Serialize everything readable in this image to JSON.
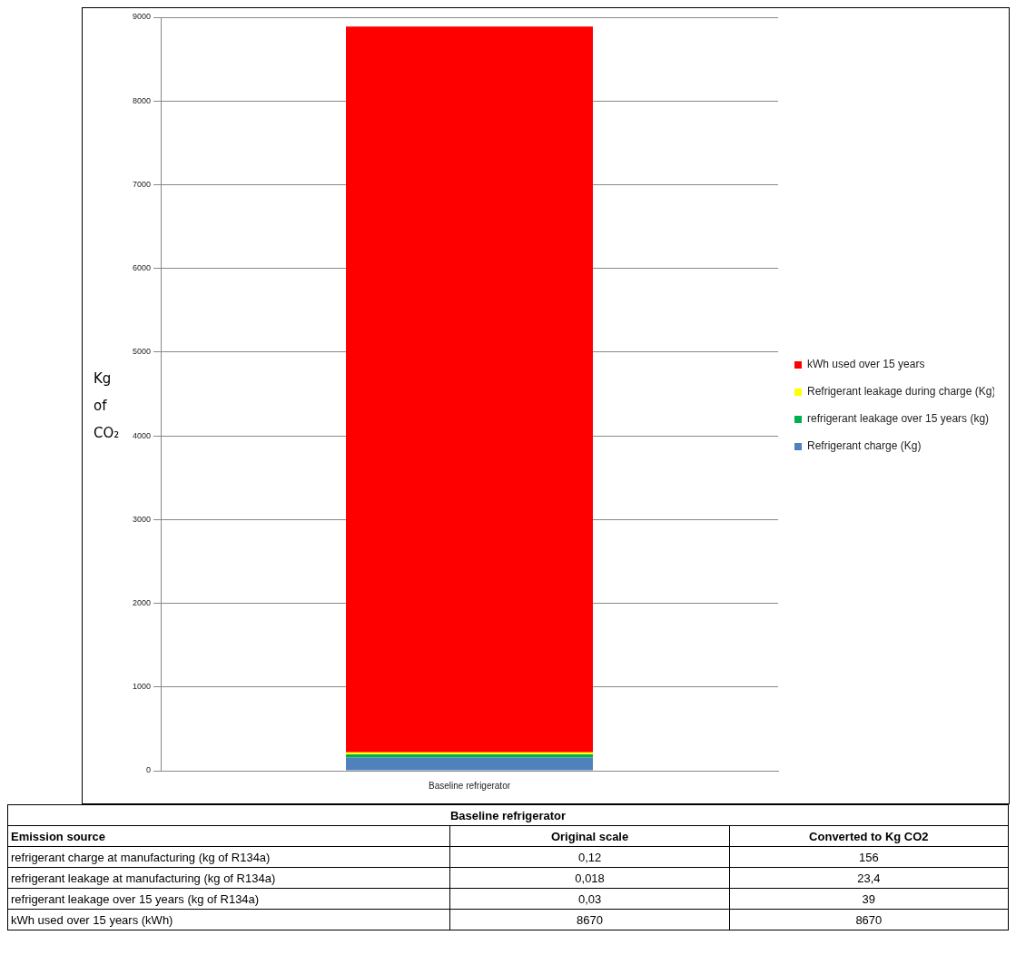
{
  "chart_data": {
    "type": "bar",
    "stacked": true,
    "ylabel": "Kg of CO₂",
    "categories": [
      "Baseline refrigerator"
    ],
    "series": [
      {
        "name": "Refrigerant charge (Kg)",
        "color": "#4f81bd",
        "values": [
          156
        ]
      },
      {
        "name": "refrigerant leakage over 15 years (kg)",
        "color": "#00b050",
        "values": [
          39
        ]
      },
      {
        "name": "Refrigerant leakage during charge (Kg)",
        "color": "#ffff00",
        "values": [
          23.4
        ]
      },
      {
        "name": "kWh used over 15 years",
        "color": "#ff0000",
        "values": [
          8670
        ]
      }
    ],
    "ylim": [
      0,
      9000
    ],
    "yticks": [
      0,
      1000,
      2000,
      3000,
      4000,
      5000,
      6000,
      7000,
      8000,
      9000
    ],
    "grid": "y",
    "legend": "right",
    "annotations": [
      "Baseline refrigerator",
      "Emission source",
      "Original scale",
      "Converted to Kg CO2",
      "refrigerant charge at manufacturing (kg of R134a)",
      "0,12",
      "156",
      "refrigerant leakage at manufacturing (kg of R134a)",
      "0,018",
      "23,4",
      "refrigerant leakage over 15 years (kg of R134a)",
      "0,03",
      "39",
      "kWh used over 15 years (kWh)",
      "8670",
      "8670"
    ]
  }
}
